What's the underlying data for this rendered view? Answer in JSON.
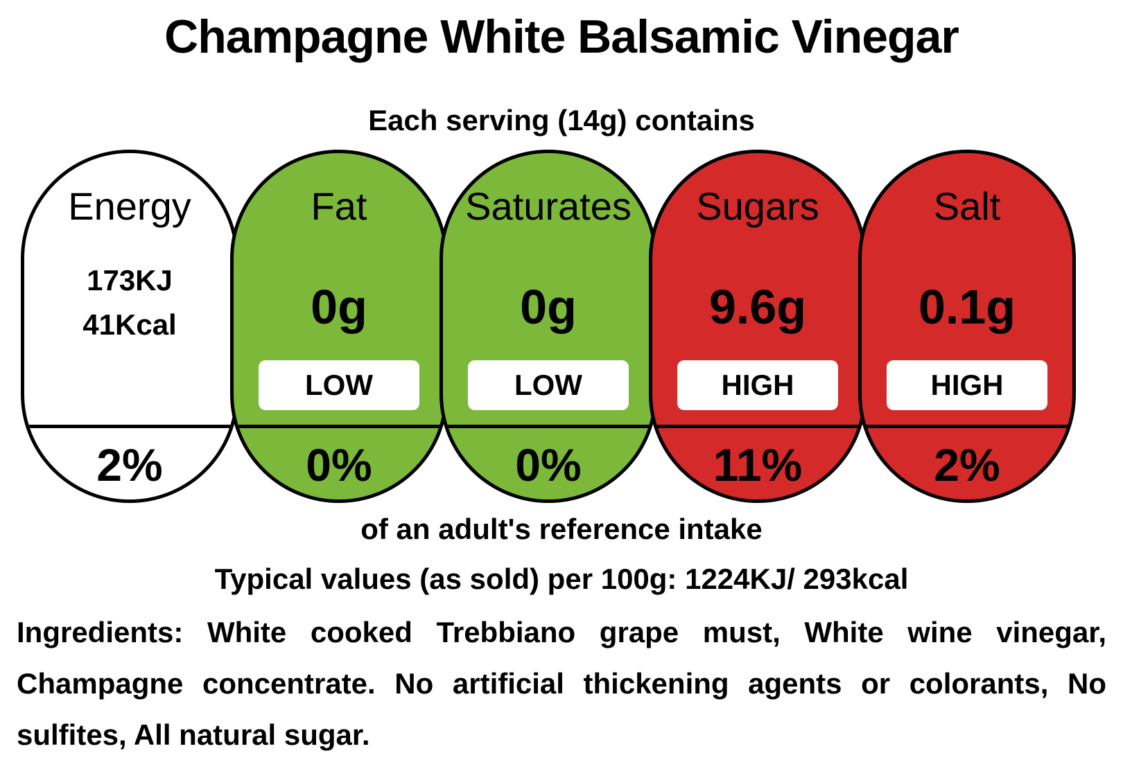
{
  "title": "Champagne White Balsamic Vinegar",
  "serving_text": "Each serving (14g) contains",
  "nutrients": [
    {
      "name": "Energy",
      "kj": "173KJ",
      "kcal": "41Kcal",
      "percent": "2%",
      "color": "#ffffff"
    },
    {
      "name": "Fat",
      "value": "0g",
      "level": "LOW",
      "percent": "0%",
      "color": "#7cb83a"
    },
    {
      "name": "Saturates",
      "value": "0g",
      "level": "LOW",
      "percent": "0%",
      "color": "#7cb83a"
    },
    {
      "name": "Sugars",
      "value": "9.6g",
      "level": "HIGH",
      "percent": "11%",
      "color": "#d42a2a"
    },
    {
      "name": "Salt",
      "value": "0.1g",
      "level": "HIGH",
      "percent": "2%",
      "color": "#d42a2a"
    }
  ],
  "reference_intake_text": "of an adult's reference intake",
  "typical_values": "Typical values (as sold) per 100g: 1224KJ/ 293kcal",
  "ingredients": "Ingredients: White cooked Trebbiano grape must, White wine vinegar, Champagne concentrate. No artificial thickening agents or colorants, No sulfites, All natural sugar."
}
